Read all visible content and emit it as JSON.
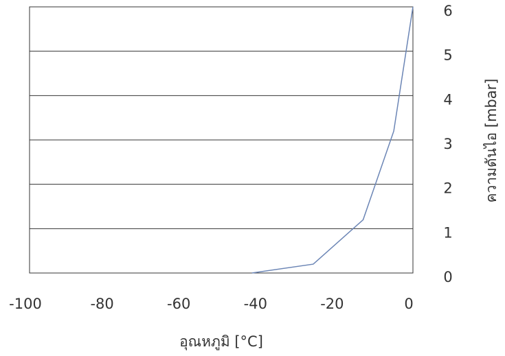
{
  "chart_data": {
    "type": "line",
    "title": "",
    "xlabel": "อุณหภูมิ [°C]",
    "ylabel": "ความดันไอ [mbar]",
    "xlim": [
      -100,
      0
    ],
    "ylim": [
      0,
      6
    ],
    "x_ticks": [
      "-100",
      "-80",
      "-60",
      "-40",
      "-20",
      "0"
    ],
    "y_ticks": [
      "0",
      "1",
      "2",
      "3",
      "4",
      "5",
      "6"
    ],
    "grid": "horizontal",
    "y_axis_position": "right",
    "series": [
      {
        "color": "#6b85b5",
        "x": [
          -42,
          -26,
          -13,
          -5,
          0
        ],
        "y": [
          0,
          0.2,
          1.2,
          3.2,
          6
        ]
      }
    ]
  }
}
